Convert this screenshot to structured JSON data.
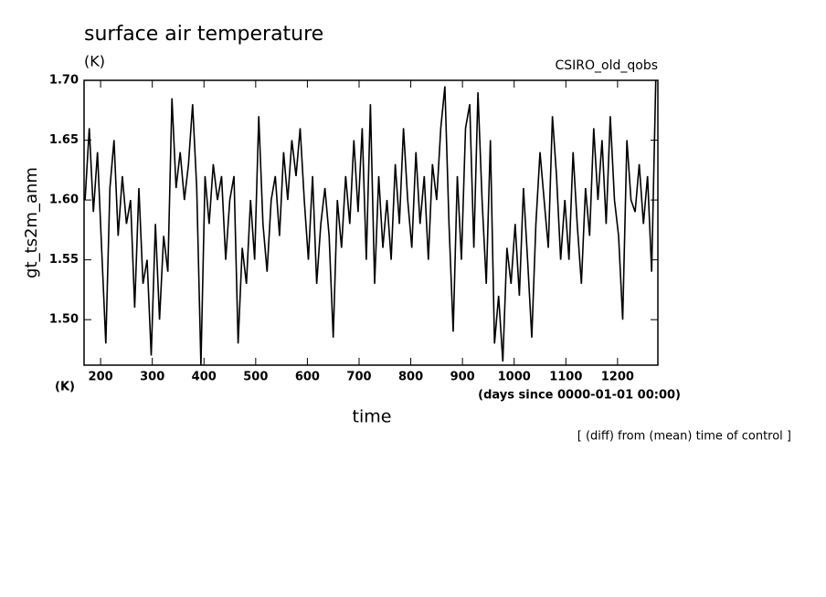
{
  "chart_data": {
    "type": "line",
    "title": "surface air temperature",
    "unit": "(K)",
    "source": "CSIRO_old_qobs",
    "ylabel": "gt_ts2m_anm",
    "xlabel": "time",
    "x_unit": "(days since 0000-01-01 00:00)",
    "y_unit_bottom": "(K)",
    "note": "[ (diff) from (mean) time of control ]",
    "xlim": [
      168,
      1278
    ],
    "ylim": [
      1.462,
      1.7
    ],
    "xticks": [
      200,
      300,
      400,
      500,
      600,
      700,
      800,
      900,
      1000,
      1100,
      1200
    ],
    "yticks": [
      {
        "value": 1.5,
        "label": "1.50"
      },
      1.55,
      {
        "value": 1.6,
        "label": "1.60"
      },
      1.65,
      {
        "value": 1.7,
        "label": "1.70"
      }
    ],
    "x": [
      170,
      178,
      186,
      194,
      202,
      210,
      218,
      226,
      234,
      242,
      250,
      258,
      266,
      274,
      282,
      290,
      298,
      306,
      314,
      322,
      330,
      338,
      346,
      354,
      362,
      370,
      378,
      386,
      394,
      402,
      410,
      418,
      426,
      434,
      442,
      450,
      458,
      466,
      474,
      482,
      490,
      498,
      506,
      514,
      522,
      530,
      538,
      546,
      554,
      562,
      570,
      578,
      586,
      594,
      602,
      610,
      618,
      626,
      634,
      642,
      650,
      658,
      666,
      674,
      682,
      690,
      698,
      706,
      714,
      722,
      730,
      738,
      746,
      754,
      762,
      770,
      778,
      786,
      794,
      802,
      810,
      818,
      826,
      834,
      842,
      850,
      858,
      866,
      874,
      882,
      890,
      898,
      906,
      914,
      922,
      930,
      938,
      946,
      954,
      962,
      970,
      978,
      986,
      994,
      1002,
      1010,
      1018,
      1026,
      1034,
      1042,
      1050,
      1058,
      1066,
      1074,
      1082,
      1090,
      1098,
      1106,
      1114,
      1122,
      1130,
      1138,
      1146,
      1154,
      1162,
      1170,
      1178,
      1186,
      1194,
      1202,
      1210,
      1218,
      1226,
      1234,
      1242,
      1250,
      1258,
      1266,
      1274
    ],
    "series": [
      {
        "name": "gt_ts2m_anm",
        "color": "#000000",
        "values": [
          1.6,
          1.66,
          1.59,
          1.64,
          1.56,
          1.48,
          1.61,
          1.65,
          1.57,
          1.62,
          1.58,
          1.6,
          1.51,
          1.61,
          1.53,
          1.55,
          1.47,
          1.58,
          1.5,
          1.57,
          1.54,
          1.685,
          1.61,
          1.64,
          1.6,
          1.63,
          1.68,
          1.61,
          1.462,
          1.62,
          1.58,
          1.63,
          1.6,
          1.62,
          1.55,
          1.6,
          1.62,
          1.48,
          1.56,
          1.53,
          1.6,
          1.55,
          1.67,
          1.58,
          1.54,
          1.6,
          1.62,
          1.57,
          1.64,
          1.6,
          1.65,
          1.62,
          1.66,
          1.6,
          1.55,
          1.62,
          1.53,
          1.58,
          1.61,
          1.57,
          1.485,
          1.6,
          1.56,
          1.62,
          1.58,
          1.65,
          1.59,
          1.66,
          1.55,
          1.68,
          1.53,
          1.62,
          1.56,
          1.6,
          1.55,
          1.63,
          1.58,
          1.66,
          1.6,
          1.56,
          1.64,
          1.58,
          1.62,
          1.55,
          1.63,
          1.6,
          1.66,
          1.695,
          1.58,
          1.49,
          1.62,
          1.55,
          1.66,
          1.68,
          1.56,
          1.69,
          1.6,
          1.53,
          1.65,
          1.48,
          1.52,
          1.465,
          1.56,
          1.53,
          1.58,
          1.52,
          1.61,
          1.55,
          1.485,
          1.58,
          1.64,
          1.6,
          1.56,
          1.67,
          1.62,
          1.55,
          1.6,
          1.55,
          1.64,
          1.58,
          1.53,
          1.61,
          1.57,
          1.66,
          1.6,
          1.65,
          1.58,
          1.67,
          1.6,
          1.57,
          1.5,
          1.65,
          1.6,
          1.59,
          1.63,
          1.58,
          1.62,
          1.54,
          1.7
        ]
      }
    ]
  }
}
